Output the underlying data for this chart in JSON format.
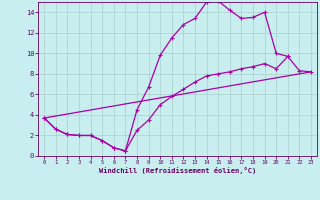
{
  "xlabel": "Windchill (Refroidissement éolien,°C)",
  "bg_color": "#c8eef0",
  "grid_color": "#aacccc",
  "line_color": "#aa00aa",
  "xlim": [
    -0.5,
    23.5
  ],
  "ylim": [
    0,
    15
  ],
  "xticks": [
    0,
    1,
    2,
    3,
    4,
    5,
    6,
    7,
    8,
    9,
    10,
    11,
    12,
    13,
    14,
    15,
    16,
    17,
    18,
    19,
    20,
    21,
    22,
    23
  ],
  "yticks": [
    0,
    2,
    4,
    6,
    8,
    10,
    12,
    14
  ],
  "line1_x": [
    0,
    1,
    2,
    3,
    4,
    5,
    6,
    7,
    8,
    9,
    10,
    11,
    12,
    13,
    14,
    15,
    16,
    17,
    18,
    19,
    20,
    21
  ],
  "line1_y": [
    3.7,
    2.6,
    2.1,
    2.0,
    2.0,
    1.5,
    0.8,
    0.5,
    4.5,
    6.7,
    9.8,
    11.5,
    12.8,
    13.4,
    15.0,
    15.1,
    14.2,
    13.4,
    13.5,
    14.0,
    10.0,
    9.7
  ],
  "line2_x": [
    0,
    1,
    2,
    3,
    4,
    5,
    6,
    7,
    8,
    9,
    10,
    11,
    12,
    13,
    14,
    15,
    16,
    17,
    18,
    19,
    20,
    21,
    22,
    23
  ],
  "line2_y": [
    3.7,
    2.6,
    2.1,
    2.0,
    2.0,
    1.5,
    0.8,
    0.5,
    2.5,
    3.5,
    5.0,
    5.8,
    6.5,
    7.2,
    7.8,
    8.0,
    8.2,
    8.5,
    8.7,
    9.0,
    8.5,
    9.7,
    8.3,
    8.2
  ],
  "line3_x": [
    0,
    23
  ],
  "line3_y": [
    3.7,
    8.2
  ]
}
